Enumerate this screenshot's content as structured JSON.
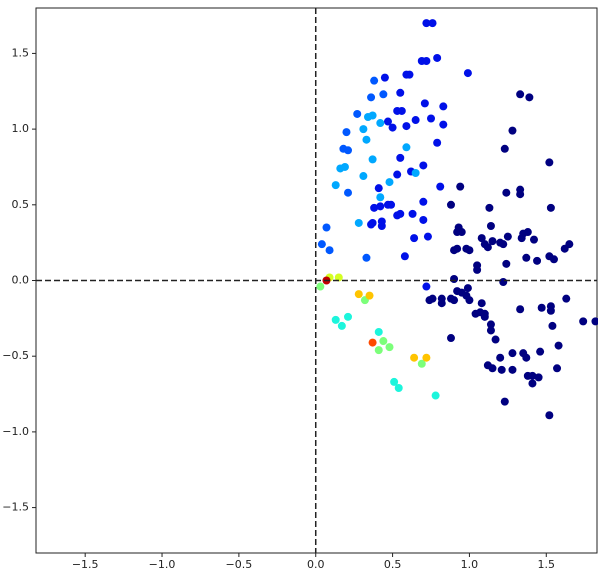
{
  "chart_data": {
    "type": "scatter",
    "xlim": [
      -1.82,
      1.83
    ],
    "ylim": [
      -1.8,
      1.8
    ],
    "xticks": [
      {
        "value": -1.5,
        "label": "−1.5"
      },
      {
        "value": -1.0,
        "label": "−1.0"
      },
      {
        "value": -0.5,
        "label": "−0.5"
      },
      {
        "value": 0,
        "label": "0.0"
      },
      0.5,
      {
        "value": 1.0,
        "label": "1.0"
      },
      1.5
    ],
    "yticks": [
      {
        "value": -1.5,
        "label": "−1.5"
      },
      {
        "value": -1.0,
        "label": "−1.0"
      },
      {
        "value": -0.5,
        "label": "−0.5"
      },
      {
        "value": 0,
        "label": "0.0"
      },
      0.5,
      {
        "value": 1.0,
        "label": "1.0"
      },
      1.5
    ],
    "axvline": 0,
    "axhline": 0,
    "series": [
      {
        "color": "#000080",
        "x": [
          1.33,
          1.39,
          1.28,
          1.23,
          1.52,
          1.33,
          1.33,
          1.24,
          1.53,
          1.13,
          0.88,
          0.94,
          0.93,
          0.95,
          0.92,
          1.35,
          1.38,
          1.34,
          1.42,
          1.25,
          1.15,
          1.2,
          1.22,
          1.08,
          1.1,
          1.12,
          1.14,
          0.92,
          0.9,
          0.98,
          1.0,
          1.37,
          1.44,
          1.52,
          1.55,
          1.62,
          1.65,
          1.24,
          1.05,
          1.05,
          0.9,
          1.22,
          0.99,
          0.92,
          0.95,
          0.76,
          0.74,
          0.82,
          0.82,
          0.88,
          0.9,
          0.98,
          1.0,
          1.08,
          1.04,
          1.07,
          1.1,
          1.1,
          1.33,
          1.47,
          1.53,
          1.53,
          1.63,
          1.74,
          1.82,
          1.54,
          1.14,
          1.14,
          1.17,
          0.88,
          1.28,
          1.35,
          1.37,
          1.2,
          1.46,
          1.58,
          1.12,
          1.15,
          1.21,
          1.28,
          1.38,
          1.41,
          1.41,
          1.45,
          1.57,
          1.23,
          1.52
        ],
        "y": [
          1.23,
          1.21,
          0.99,
          0.87,
          0.78,
          0.6,
          0.57,
          0.58,
          0.48,
          0.48,
          0.5,
          0.62,
          0.35,
          0.32,
          0.32,
          0.31,
          0.32,
          0.28,
          0.27,
          0.29,
          0.26,
          0.25,
          0.24,
          0.28,
          0.24,
          0.22,
          0.36,
          0.21,
          0.2,
          0.21,
          0.2,
          0.15,
          0.13,
          0.16,
          0.14,
          0.21,
          0.24,
          0.11,
          0.07,
          0.1,
          0.01,
          -0.01,
          -0.05,
          -0.07,
          -0.08,
          -0.12,
          -0.13,
          -0.12,
          -0.15,
          -0.12,
          -0.13,
          -0.1,
          -0.13,
          -0.15,
          -0.22,
          -0.21,
          -0.22,
          -0.24,
          -0.19,
          -0.18,
          -0.17,
          -0.2,
          -0.12,
          -0.27,
          -0.27,
          -0.3,
          -0.29,
          -0.33,
          -0.39,
          -0.38,
          -0.48,
          -0.48,
          -0.51,
          -0.51,
          -0.47,
          -0.43,
          -0.56,
          -0.58,
          -0.59,
          -0.59,
          -0.63,
          -0.63,
          -0.68,
          -0.64,
          -0.58,
          -0.8,
          -0.89
        ]
      },
      {
        "color": "#0010e8",
        "x": [
          0.72,
          0.76,
          0.69,
          0.72,
          0.79,
          0.99,
          0.59,
          0.61,
          0.45,
          0.55,
          0.83,
          0.71,
          0.53,
          0.56,
          0.75,
          0.65,
          0.83,
          0.59,
          0.5,
          0.47,
          0.79,
          0.55,
          0.7,
          0.62,
          0.53,
          0.81,
          0.41,
          0.47,
          0.49,
          0.42,
          0.38,
          0.7,
          0.63,
          0.55,
          0.53,
          0.7,
          0.43,
          0.36,
          0.37,
          0.43,
          0.73,
          0.64,
          0.58,
          0.72
        ],
        "y": [
          1.7,
          1.7,
          1.45,
          1.45,
          1.47,
          1.37,
          1.36,
          1.36,
          1.34,
          1.24,
          1.15,
          1.17,
          1.12,
          1.12,
          1.07,
          1.06,
          1.03,
          1.02,
          1.01,
          1.05,
          0.91,
          0.81,
          0.76,
          0.72,
          0.7,
          0.62,
          0.61,
          0.5,
          0.5,
          0.49,
          0.48,
          0.52,
          0.44,
          0.44,
          0.43,
          0.4,
          0.39,
          0.37,
          0.38,
          0.36,
          0.29,
          0.28,
          0.16,
          -0.04
        ]
      },
      {
        "color": "#0058ff",
        "x": [
          0.38,
          0.44,
          0.36,
          0.27,
          0.2,
          0.21,
          0.18,
          0.21,
          0.07,
          0.04,
          0.09,
          0.33
        ],
        "y": [
          1.32,
          1.23,
          1.21,
          1.1,
          0.98,
          0.86,
          0.87,
          0.58,
          0.35,
          0.24,
          0.2,
          0.15
        ]
      },
      {
        "color": "#00a8ff",
        "x": [
          0.34,
          0.37,
          0.31,
          0.42,
          0.33,
          0.59,
          0.37,
          0.16,
          0.19,
          0.13,
          0.31,
          0.42,
          0.48,
          0.65,
          0.28
        ],
        "y": [
          1.08,
          1.09,
          1.0,
          1.04,
          0.93,
          0.88,
          0.8,
          0.74,
          0.75,
          0.63,
          0.69,
          0.55,
          0.65,
          0.71,
          0.38
        ]
      },
      {
        "color": "#1cf5dc",
        "x": [
          0.13,
          0.17,
          0.21,
          0.41,
          0.51,
          0.54,
          0.78
        ],
        "y": [
          -0.26,
          -0.3,
          -0.24,
          -0.34,
          -0.67,
          -0.71,
          -0.76
        ]
      },
      {
        "color": "#7cff7a",
        "x": [
          0.03,
          0.32,
          0.41,
          0.48,
          0.44,
          0.69
        ],
        "y": [
          -0.04,
          -0.13,
          -0.46,
          -0.44,
          -0.4,
          -0.55
        ]
      },
      {
        "color": "#d4ff22",
        "x": [
          0.09,
          0.15
        ],
        "y": [
          0.02,
          0.02
        ]
      },
      {
        "color": "#ffc400",
        "x": [
          0.28,
          0.35,
          0.64,
          0.72
        ],
        "y": [
          -0.09,
          -0.1,
          -0.51,
          -0.51
        ]
      },
      {
        "color": "#ff4a00",
        "x": [
          0.37
        ],
        "y": [
          -0.41
        ]
      },
      {
        "color": "#c00000",
        "x": [
          0.07
        ],
        "y": [
          0.0
        ]
      }
    ]
  }
}
